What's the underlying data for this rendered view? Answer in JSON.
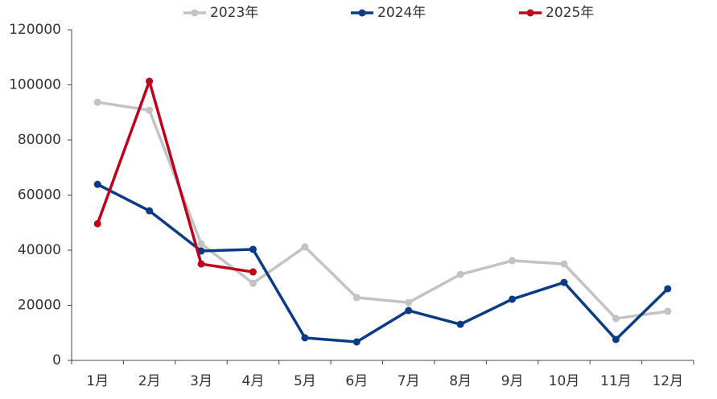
{
  "chart_data": {
    "type": "line",
    "categories": [
      "1月",
      "2月",
      "3月",
      "4月",
      "5月",
      "6月",
      "7月",
      "8月",
      "9月",
      "10月",
      "11月",
      "12月"
    ],
    "series": [
      {
        "name": "2023年",
        "color": "#c3c3c3",
        "values": [
          93700,
          90800,
          42300,
          28000,
          41200,
          22800,
          21000,
          31200,
          36200,
          35000,
          15200,
          17800
        ]
      },
      {
        "name": "2024年",
        "color": "#0b3a86",
        "values": [
          63900,
          54300,
          39700,
          40300,
          8200,
          6700,
          18100,
          13100,
          22200,
          28300,
          7600,
          26000
        ]
      },
      {
        "name": "2025年",
        "color": "#c0001a",
        "values": [
          49600,
          101300,
          35000,
          32100,
          null,
          null,
          null,
          null,
          null,
          null,
          null,
          null
        ]
      }
    ],
    "ylim": [
      0,
      120000
    ],
    "yticks": [
      0,
      20000,
      40000,
      60000,
      80000,
      100000,
      120000
    ],
    "legend": "top"
  }
}
